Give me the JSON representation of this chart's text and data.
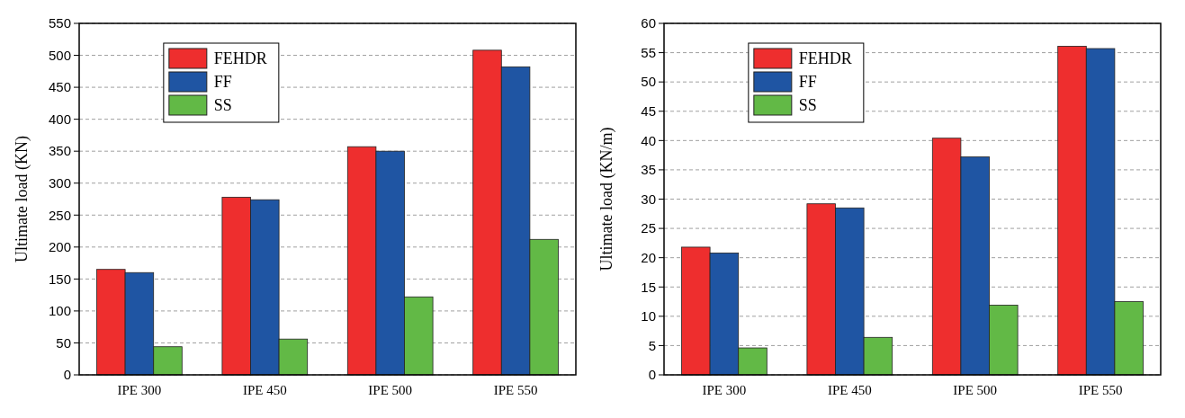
{
  "chart_data": [
    {
      "type": "bar",
      "ylabel": "Ultimate load (KN)",
      "categories": [
        "IPE 300",
        "IPE 450",
        "IPE 500",
        "IPE 550"
      ],
      "series": [
        {
          "name": "FEHDR",
          "color": "#ee2e2e",
          "values": [
            165,
            278,
            357,
            508
          ]
        },
        {
          "name": "FF",
          "color": "#1f55a3",
          "values": [
            160,
            274,
            350,
            482
          ]
        },
        {
          "name": "SS",
          "color": "#62b946",
          "values": [
            44,
            56,
            122,
            212
          ]
        }
      ],
      "ylim": [
        0,
        550
      ],
      "yticks": [
        0,
        50,
        100,
        150,
        200,
        250,
        300,
        350,
        400,
        450,
        500,
        550
      ],
      "grid": "y",
      "legend": "top left"
    },
    {
      "type": "bar",
      "ylabel": "Ultimate load (KN/m)",
      "categories": [
        "IPE 300",
        "IPE 450",
        "IPE 500",
        "IPE 550"
      ],
      "series": [
        {
          "name": "FEHDR",
          "color": "#ee2e2e",
          "values": [
            21.8,
            29.2,
            40.4,
            56.1
          ]
        },
        {
          "name": "FF",
          "color": "#1f55a3",
          "values": [
            20.8,
            28.5,
            37.2,
            55.7
          ]
        },
        {
          "name": "SS",
          "color": "#62b946",
          "values": [
            4.6,
            6.4,
            11.9,
            12.5
          ]
        }
      ],
      "ylim": [
        0,
        60
      ],
      "yticks": [
        0,
        5,
        10,
        15,
        20,
        25,
        30,
        35,
        40,
        45,
        50,
        55,
        60
      ],
      "grid": "y",
      "legend": "top left"
    }
  ]
}
